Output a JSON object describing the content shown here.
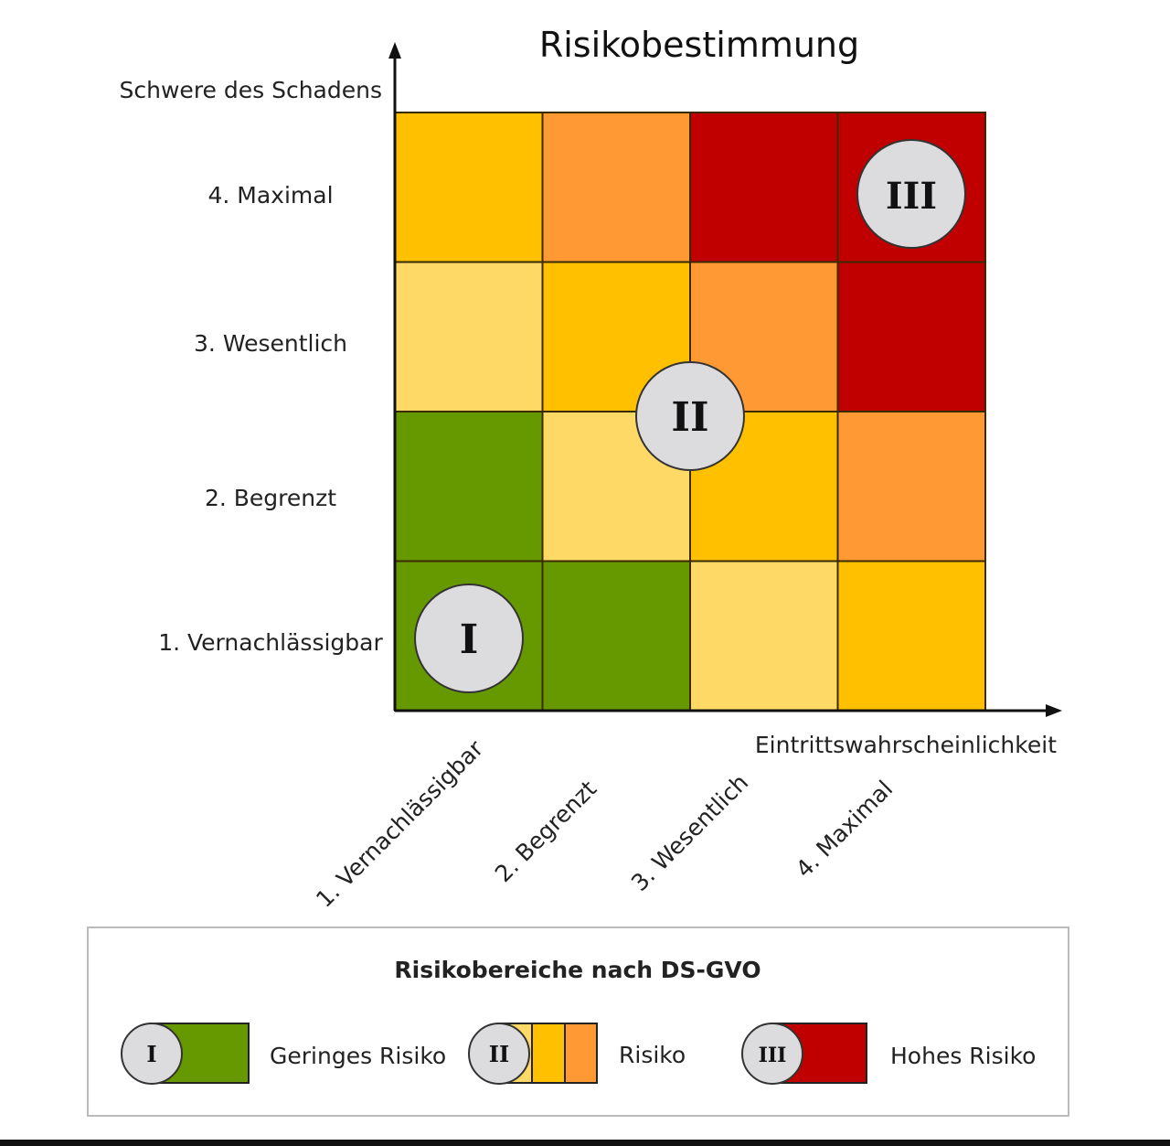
{
  "title": "Risikobestimmung",
  "y_axis_label": "Schwere des Schadens",
  "x_axis_label": "Eintrittswahrscheinlichkeit",
  "y_levels": [
    "1. Vernachlässigbar",
    "2. Begrenzt",
    "3. Wesentlich",
    "4. Maximal"
  ],
  "x_levels": [
    "1. Vernachlässigbar",
    "2. Begrenzt",
    "3. Wesentlich",
    "4. Maximal"
  ],
  "colors": {
    "green": "#669900",
    "lightyellow": "#FFD966",
    "yellow": "#FFC000",
    "orange": "#FF9933",
    "red": "#C00000",
    "circle": "#DCDCDE"
  },
  "matrix_rows_bottom_to_top": [
    [
      "green",
      "green",
      "lightyellow",
      "yellow"
    ],
    [
      "green",
      "lightyellow",
      "yellow",
      "orange"
    ],
    [
      "lightyellow",
      "yellow",
      "orange",
      "red"
    ],
    [
      "yellow",
      "orange",
      "red",
      "red"
    ]
  ],
  "markers": [
    "I",
    "II",
    "III"
  ],
  "legend": {
    "title": "Risikobereiche nach DS-GVO",
    "items": [
      {
        "numeral": "I",
        "label": "Geringes Risiko"
      },
      {
        "numeral": "II",
        "label": "Risiko"
      },
      {
        "numeral": "III",
        "label": "Hohes Risiko"
      }
    ]
  }
}
